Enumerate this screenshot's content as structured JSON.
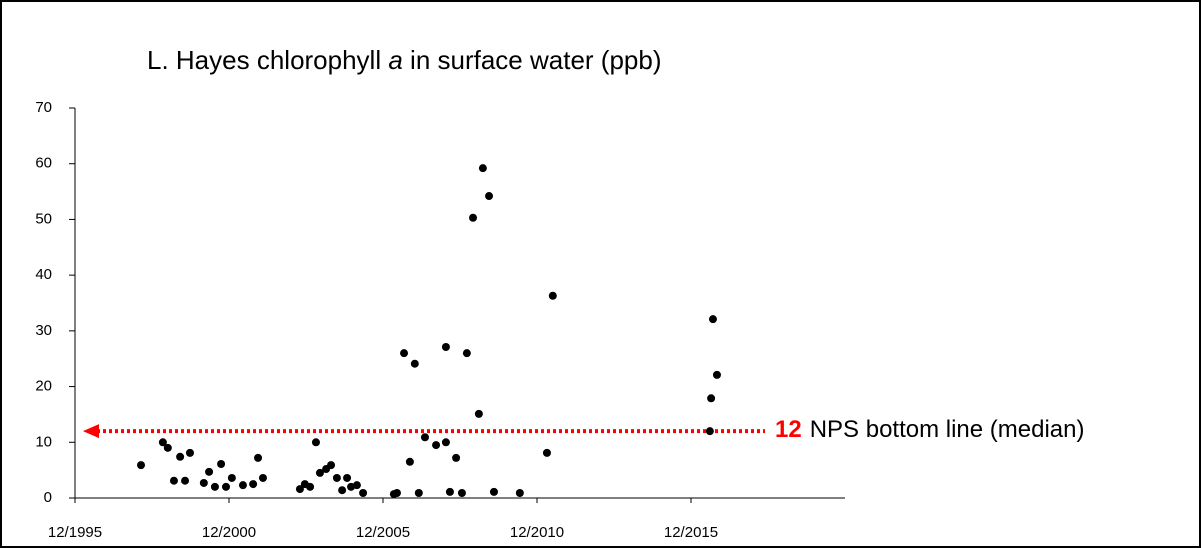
{
  "chart_data": {
    "type": "scatter",
    "title_parts": [
      {
        "text": "L. Hayes chlorophyll ",
        "italic": false
      },
      {
        "text": "a",
        "italic": true
      },
      {
        "text": " in surface water (ppb)",
        "italic": false
      }
    ],
    "series": [
      {
        "name": null,
        "color": "#000000",
        "x": [
          1998.06,
          1998.77,
          1998.93,
          1999.13,
          1999.33,
          1999.49,
          1999.65,
          2000.1,
          2000.27,
          2000.46,
          2000.66,
          2000.82,
          2001.01,
          2001.37,
          2001.7,
          2001.86,
          2002.02,
          2003.22,
          2003.38,
          2003.55,
          2003.74,
          2003.87,
          2004.07,
          2004.23,
          2004.42,
          2004.59,
          2004.75,
          2004.88,
          2005.07,
          2005.27,
          2006.27,
          2006.37,
          2006.6,
          2006.79,
          2006.95,
          2007.08,
          2007.28,
          2007.64,
          2007.96,
          2007.96,
          2008.09,
          2008.29,
          2008.48,
          2008.64,
          2008.84,
          2009.03,
          2009.16,
          2009.36,
          2009.52,
          2010.36,
          2011.24,
          2011.43,
          2016.53,
          2016.57,
          2016.63,
          2016.76
        ],
        "values": [
          5.9,
          10.0,
          9.0,
          3.1,
          7.4,
          3.1,
          8.1,
          2.7,
          4.7,
          2.0,
          6.1,
          2.0,
          3.6,
          2.3,
          2.5,
          7.2,
          3.6,
          1.6,
          2.5,
          2.0,
          10.0,
          4.5,
          5.2,
          5.9,
          3.6,
          1.4,
          3.6,
          2.0,
          2.3,
          0.9,
          0.7,
          0.9,
          26.0,
          6.5,
          24.1,
          0.9,
          10.9,
          9.5,
          27.1,
          10.0,
          1.1,
          7.2,
          0.9,
          26.0,
          50.3,
          15.1,
          59.2,
          54.2,
          1.1,
          0.9,
          8.1,
          36.3,
          12.0,
          17.9,
          32.1,
          22.1
        ]
      }
    ],
    "xlim": [
      1995.917,
      2020.917
    ],
    "xticks": [
      {
        "value": 1995.917,
        "label": "12/1995"
      },
      {
        "value": 2000.917,
        "label": "12/2000"
      },
      {
        "value": 2005.917,
        "label": "12/2005"
      },
      {
        "value": 2010.917,
        "label": "12/2010"
      },
      {
        "value": 2015.917,
        "label": "12/2015"
      }
    ],
    "ylim": [
      0,
      70
    ],
    "yticks": [
      0,
      10,
      20,
      30,
      40,
      50,
      60,
      70
    ],
    "median_line": {
      "value": 12,
      "text": "NPS bottom line (median)",
      "color": "#ff0000"
    }
  }
}
